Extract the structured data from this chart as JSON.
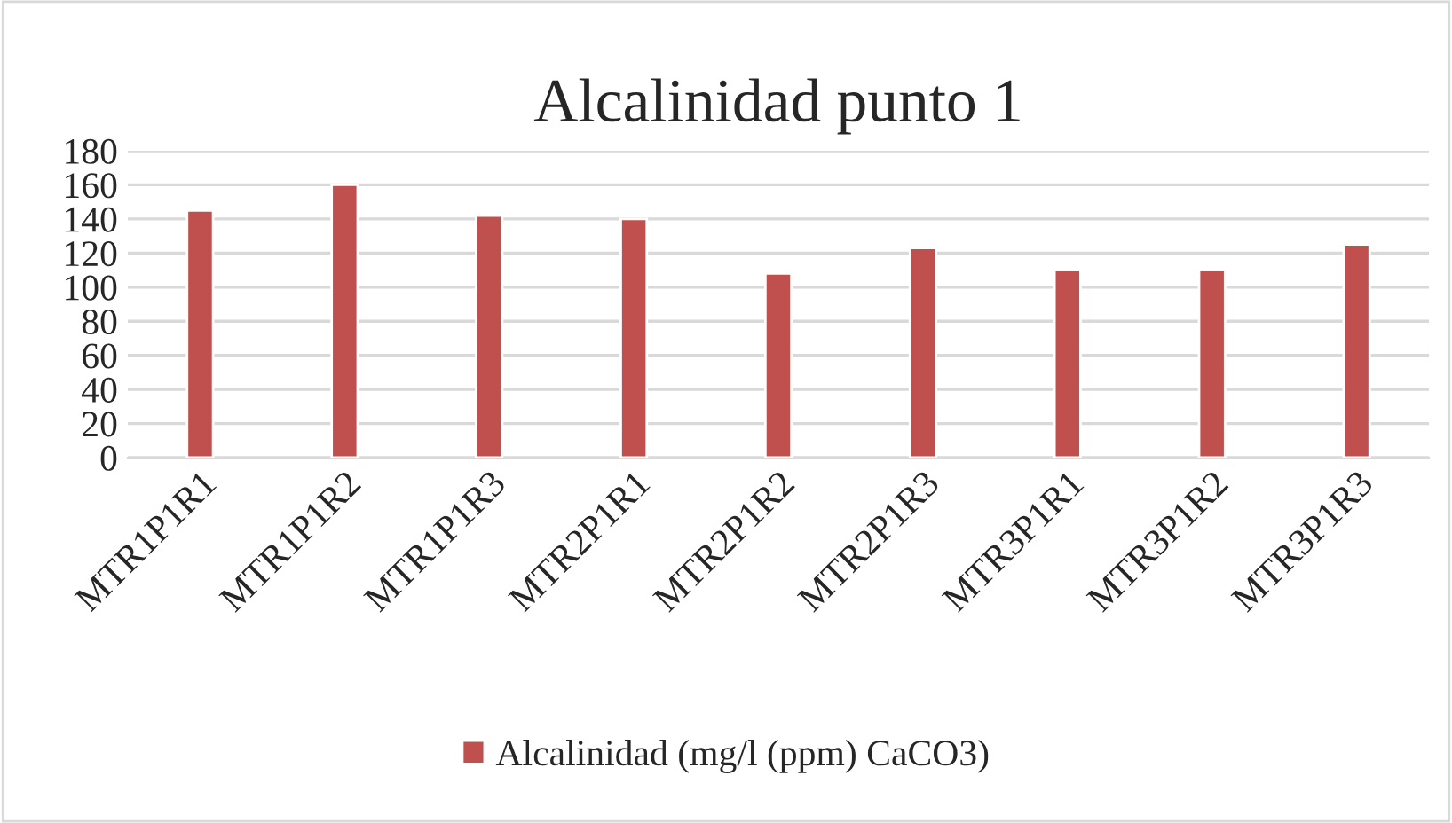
{
  "chart_data": {
    "type": "bar",
    "title": "Alcalinidad punto 1",
    "categories": [
      "MTR1P1R1",
      "MTR1P1R2",
      "MTR1P1R3",
      "MTR2P1R1",
      "MTR2P1R2",
      "MTR2P1R3",
      "MTR3P1R1",
      "MTR3P1R2",
      "MTR3P1R3"
    ],
    "series": [
      {
        "name": "Alcalinidad (mg/l (ppm) CaCO3)",
        "color": "#c0504d",
        "values": [
          145,
          160,
          142,
          140,
          108,
          123,
          110,
          110,
          125
        ]
      }
    ],
    "ylim": [
      0,
      180
    ],
    "yticks": [
      0,
      20,
      40,
      60,
      80,
      100,
      120,
      140,
      160,
      180
    ],
    "grid": "y",
    "legend": "bottom"
  }
}
